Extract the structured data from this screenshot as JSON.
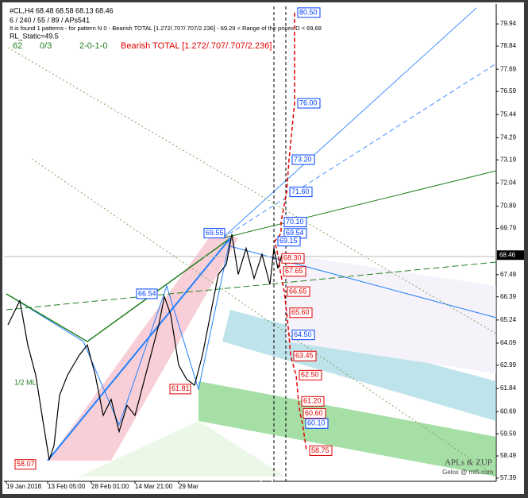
{
  "chart_data": {
    "type": "line",
    "title": "#CL,H4  68.48 68.58 68.13 68.46",
    "info_lines": [
      "6 / 240 / 55 / 89 / APs541",
      "It is found 1 patterns  -  for pattern N 0 - Bearish TOTAL [1.272/.707/.707/2.236] - 69.29 < Range of the prices D < 69,68",
      "RL_Static=49.5"
    ],
    "status": [
      "62",
      "0/3",
      "2-0-1-0"
    ],
    "pattern": "Bearish TOTAL [1.272/.707/.707/2.236]",
    "current_price": 68.46,
    "series": [
      {
        "name": "#CL,H4",
        "color": "#000000",
        "x": [
          10,
          25,
          35,
          45,
          55,
          62,
          68,
          75,
          85,
          100,
          110,
          120,
          130,
          140,
          150,
          160,
          170,
          180,
          190,
          200,
          207,
          215,
          225,
          235,
          245,
          255,
          265,
          275,
          285,
          292,
          300,
          310,
          320,
          330,
          340,
          345,
          350,
          355
        ],
        "values": [
          65.0,
          66.2,
          64.0,
          62.5,
          60.0,
          58.3,
          59.0,
          61.5,
          62.5,
          63.5,
          64.0,
          62.5,
          60.5,
          61.3,
          59.7,
          61.0,
          60.5,
          62.0,
          63.5,
          65.0,
          66.4,
          65.5,
          63.0,
          62.3,
          62.0,
          63.5,
          65.5,
          67.5,
          68.0,
          69.5,
          67.5,
          68.8,
          67.3,
          68.5,
          67.0,
          68.8,
          67.8,
          68.46
        ]
      }
    ],
    "xlim": [
      5,
      625
    ],
    "ylim": [
      57.23,
      80.93
    ],
    "yticks": [
      79.94,
      78.84,
      77.69,
      76.59,
      75.44,
      74.29,
      73.19,
      72.04,
      70.89,
      69.79,
      67.49,
      66.39,
      65.24,
      64.09,
      62.99,
      61.84,
      60.69,
      59.59,
      58.49,
      57.39
    ],
    "xticks": [
      {
        "value": 8,
        "label": "19 Jan 2018"
      },
      {
        "value": 60,
        "label": "13 Feb 05:00"
      },
      {
        "value": 115,
        "label": "28 Feb 01:00"
      },
      {
        "value": 170,
        "label": "14 Mar 21:00"
      },
      {
        "value": 225,
        "label": "29 Mar"
      }
    ],
    "pivots": {
      "x": [
        45,
        198,
        240,
        283
      ],
      "values": [
        58.07,
        66.54,
        61.81,
        69.55
      ],
      "value_labels": [
        "58.07",
        "66.54",
        "61.81",
        "69.55"
      ],
      "colors": [
        "#e00000",
        "#0040ff",
        "#e00000",
        "#0040ff"
      ]
    },
    "levels": {
      "values": [
        80.5,
        76.0,
        73.2,
        71.6,
        70.1,
        69.54,
        69.15,
        68.3,
        67.65,
        66.65,
        65.6,
        64.5,
        63.45,
        62.5,
        61.2,
        60.6,
        60.1,
        58.75
      ],
      "value_labels": [
        "80.50",
        "76.00",
        "73.20",
        "71.60",
        "70.10",
        "69.54",
        "69.15",
        "68.30",
        "67.65",
        "66.65",
        "65.60",
        "64.50",
        "63.45",
        "62.50",
        "61.20",
        "60.60",
        "60.10",
        "58.75"
      ],
      "colors": [
        "#0040ff",
        "#0040ff",
        "#0040ff",
        "#0040ff",
        "#0040ff",
        "#0040ff",
        "#0040ff",
        "#e00000",
        "#e00000",
        "#e00000",
        "#e00000",
        "#0040ff",
        "#e00000",
        "#e00000",
        "#e00000",
        "#e00000",
        "#0040ff",
        "#e00000"
      ]
    },
    "annotations": [
      "1/2 ML",
      "APLs & ZUP",
      "Gelox @ mt5.com"
    ],
    "watermark": "www.instaforex.com"
  }
}
